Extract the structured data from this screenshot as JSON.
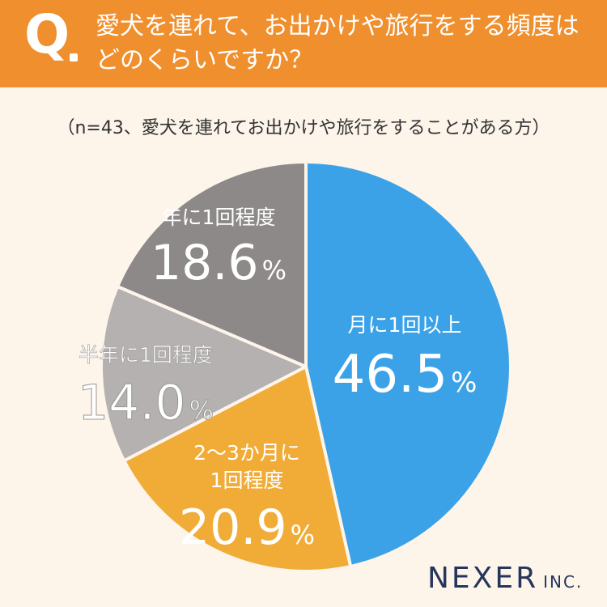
{
  "header": {
    "q_letter": "Q",
    "title_line1": "愛犬を連れて、お出かけや旅行をする頻度は",
    "title_line2": "どのくらいですか？"
  },
  "subtitle": "（n=43、愛犬を連れてお出かけや旅行をすることがある方）",
  "chart_data": {
    "type": "pie",
    "title": "愛犬を連れて、お出かけや旅行をする頻度はどのくらいですか？",
    "subtitle": "（n=43、愛犬を連れてお出かけや旅行をすることがある方）",
    "unit": "%",
    "slices": [
      {
        "label_lines": [
          "月に1回以上"
        ],
        "value": 46.5,
        "value_text": "46.5",
        "color": "#3ba2e8"
      },
      {
        "label_lines": [
          "2〜3か月に",
          "1回程度"
        ],
        "value": 20.9,
        "value_text": "20.9",
        "color": "#f0ac36"
      },
      {
        "label_lines": [
          "半年に1回程度"
        ],
        "value": 14.0,
        "value_text": "14.0",
        "color": "#b4b1b0"
      },
      {
        "label_lines": [
          "年に1回程度"
        ],
        "value": 18.6,
        "value_text": "18.6",
        "color": "#8c8988"
      }
    ]
  },
  "logo": {
    "main": "NEXER",
    "sub": "INC."
  }
}
